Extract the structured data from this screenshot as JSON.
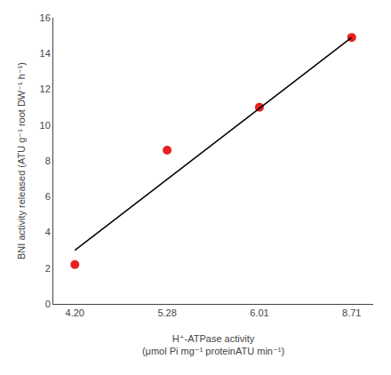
{
  "chart_data": {
    "type": "scatter",
    "categories": [
      "4.20",
      "5.28",
      "6.01",
      "8.71"
    ],
    "series": [
      {
        "type": "scatter",
        "color": "#e82020",
        "values": [
          2.2,
          8.6,
          11.0,
          14.9
        ]
      },
      {
        "type": "line",
        "color": "#000000",
        "x": [
          "4.20",
          "8.71"
        ],
        "values": [
          3.0,
          14.9
        ]
      }
    ],
    "xlabel": "H⁺-ATPase activity\n(μmol Pi mg⁻¹ proteinATU min⁻¹)",
    "ylabel": "BNI activity released (ATU g⁻¹ root DW⁻¹ h⁻¹)",
    "ylim": [
      0,
      16
    ],
    "yticks": [
      0,
      2,
      4,
      6,
      8,
      10,
      12,
      14,
      16
    ],
    "grid": false
  }
}
